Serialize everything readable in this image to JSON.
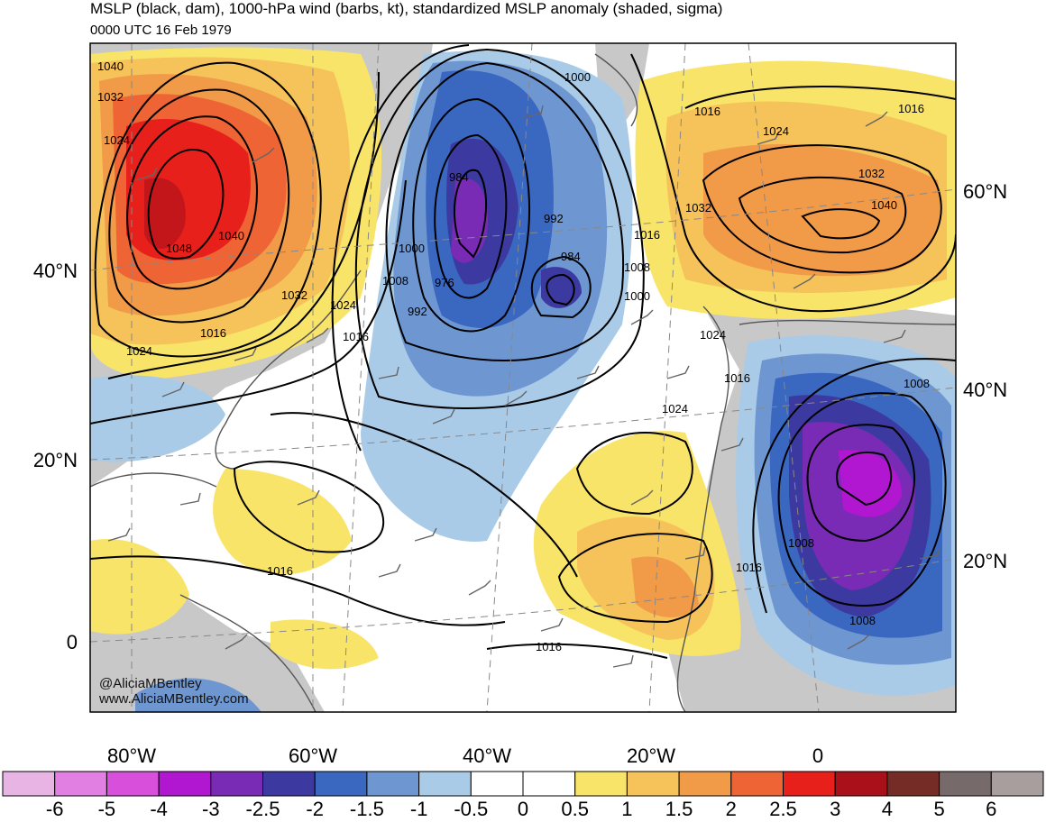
{
  "title": "MSLP (black, dam), 1000-hPa wind (barbs, kt), standardized MSLP anomaly (shaded, sigma)",
  "subtitle": "0000 UTC 16 Feb 1979",
  "credit": {
    "line1": "@AliciaMBentley",
    "line2": "www.AliciaMBentley.com"
  },
  "axes": {
    "bottom_lon": [
      "80°W",
      "60°W",
      "40°W",
      "20°W",
      "0"
    ],
    "left_lat": [
      "40°N",
      "20°N",
      "0"
    ],
    "right_lat": [
      "60°N",
      "40°N",
      "20°N"
    ]
  },
  "isobar_labels": {
    "l1040a": "1040",
    "l1032a": "1032",
    "l1024a": "1024",
    "l1048": "1048",
    "l1040b": "1040",
    "l1032b": "1032",
    "l1024b": "1024",
    "l1016a": "1016",
    "l1024c": "1024",
    "l1016b": "1016",
    "l1000a": "1000",
    "l984a": "984",
    "l992a": "992",
    "l1000b": "1000",
    "l1008a": "1008",
    "l976": "976",
    "l992b": "992",
    "l984b": "984",
    "l1016c": "1016",
    "l1008b": "1008",
    "l1000c": "1000",
    "l1016d": "1016",
    "l1016e": "1016",
    "l1024d": "1024",
    "l1032c": "1032",
    "l1040c": "1040",
    "l1032d": "1032",
    "l1024e": "1024",
    "l1016f": "1016",
    "l1008c": "1008",
    "l1024f": "1024",
    "l1008d": "1008",
    "l1016g": "1016",
    "l1008e": "1008",
    "l1016h": "1016",
    "l1016i": "1016"
  },
  "colorbar": {
    "colors": [
      "#e8b4e4",
      "#e17fe3",
      "#d84fdc",
      "#b117d0",
      "#7a2bb5",
      "#3c3aa0",
      "#3a67c0",
      "#6e97d2",
      "#a9cbe8",
      "#ffffff",
      "#ffffff",
      "#f9e46a",
      "#f5c35a",
      "#f19a48",
      "#ee6434",
      "#e8201c",
      "#a9101a",
      "#752b26",
      "#766b6a",
      "#a99e9e"
    ],
    "labels": [
      "-6",
      "-5",
      "-4",
      "-3",
      "-2.5",
      "-2",
      "-1.5",
      "-1",
      "-0.5",
      "0",
      "0.5",
      "1",
      "1.5",
      "2",
      "2.5",
      "3",
      "4",
      "5",
      "6"
    ]
  }
}
